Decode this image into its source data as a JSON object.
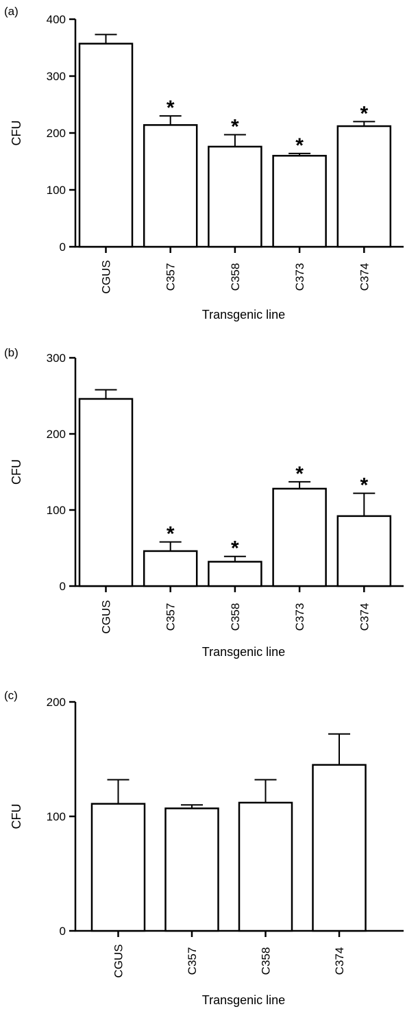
{
  "chart_data": [
    {
      "type": "bar",
      "panel_label": "(a)",
      "categories": [
        "CGUS",
        "C357",
        "C358",
        "C373",
        "C374"
      ],
      "values": [
        357,
        214,
        176,
        160,
        212
      ],
      "errors": [
        16,
        16,
        21,
        4,
        8
      ],
      "significant": [
        false,
        true,
        true,
        true,
        true
      ],
      "significance_marker": "*",
      "xlabel": "Transgenic line",
      "ylabel": "CFU",
      "ylim": [
        0,
        400
      ],
      "yticks": [
        0,
        100,
        200,
        300,
        400
      ],
      "grid": false
    },
    {
      "type": "bar",
      "panel_label": "(b)",
      "categories": [
        "CGUS",
        "C357",
        "C358",
        "C373",
        "C374"
      ],
      "values": [
        246,
        46,
        32,
        128,
        92
      ],
      "errors": [
        12,
        12,
        7,
        9,
        30
      ],
      "significant": [
        false,
        true,
        true,
        true,
        true
      ],
      "significance_marker": "*",
      "xlabel": "Transgenic line",
      "ylabel": "CFU",
      "ylim": [
        0,
        300
      ],
      "yticks": [
        0,
        100,
        200,
        300
      ],
      "grid": false
    },
    {
      "type": "bar",
      "panel_label": "(c)",
      "categories": [
        "CGUS",
        "C357",
        "C358",
        "C374"
      ],
      "values": [
        111,
        107,
        112,
        145
      ],
      "errors": [
        21,
        3,
        20,
        27
      ],
      "significant": [
        false,
        false,
        false,
        false
      ],
      "significance_marker": "*",
      "xlabel": "Transgenic line",
      "ylabel": "CFU",
      "ylim": [
        0,
        200
      ],
      "yticks": [
        0,
        100,
        200
      ],
      "grid": false
    }
  ]
}
